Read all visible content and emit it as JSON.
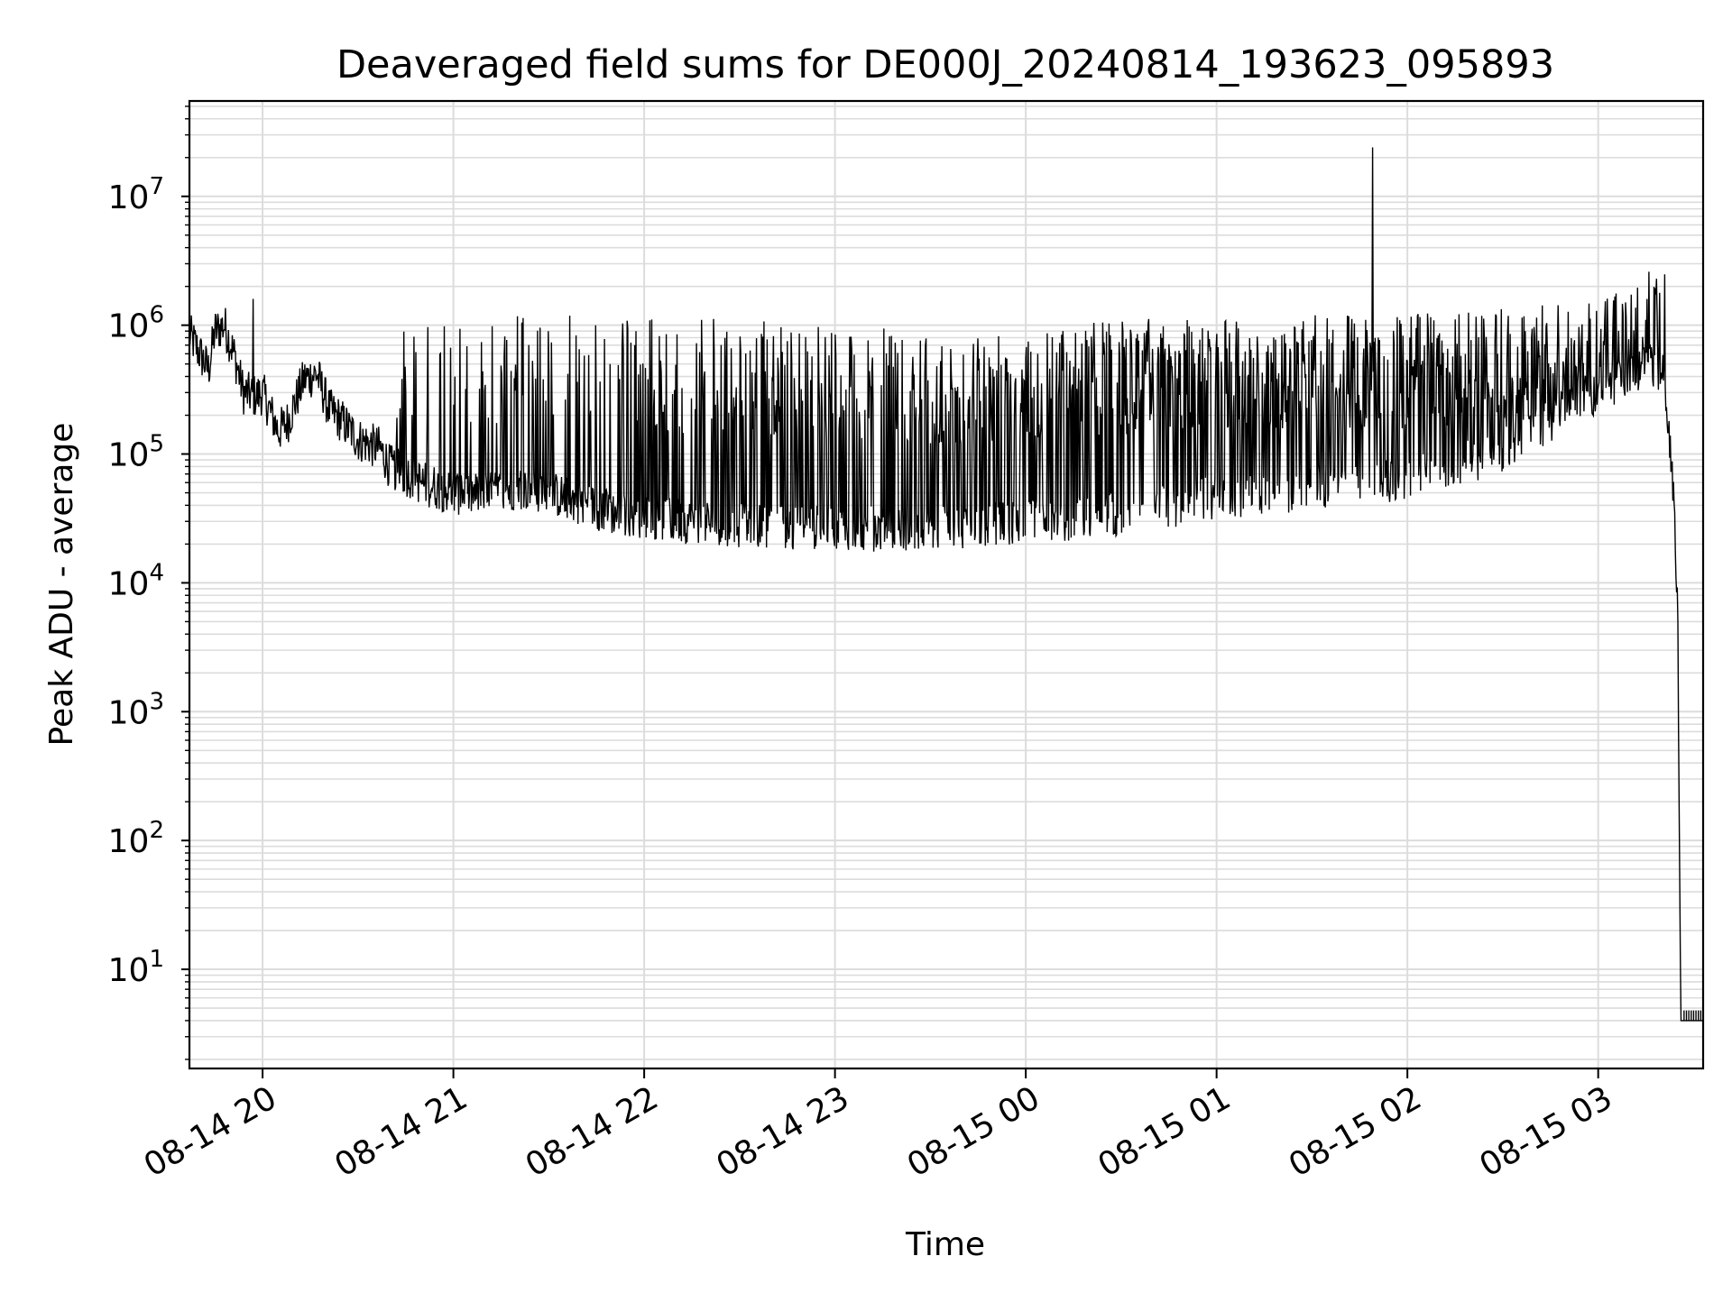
{
  "chart_data": {
    "type": "line",
    "title": "Deaveraged field sums for DE000J_20240814_193623_095893",
    "xlabel": "Time",
    "ylabel": "Peak ADU - average",
    "yscale": "log",
    "grid": true,
    "x_tick_labels": [
      "08-14 20",
      "08-14 21",
      "08-14 22",
      "08-14 23",
      "08-15 00",
      "08-15 01",
      "08-15 02",
      "08-15 03"
    ],
    "x_ticks": [
      "2024-08-14 20:00",
      "2024-08-14 21:00",
      "2024-08-14 22:00",
      "2024-08-14 23:00",
      "2024-08-15 00:00",
      "2024-08-15 01:00",
      "2024-08-15 02:00",
      "2024-08-15 03:00"
    ],
    "xlim": [
      "2024-08-14 19:37",
      "2024-08-15 03:33"
    ],
    "y_ticks": [
      {
        "value": 10,
        "base": "10",
        "exp": "1"
      },
      {
        "value": 100,
        "base": "10",
        "exp": "2"
      },
      {
        "value": 1000,
        "base": "10",
        "exp": "3"
      },
      {
        "value": 10000,
        "base": "10",
        "exp": "4"
      },
      {
        "value": 100000,
        "base": "10",
        "exp": "5"
      },
      {
        "value": 1000000,
        "base": "10",
        "exp": "6"
      },
      {
        "value": 10000000,
        "base": "10",
        "exp": "7"
      }
    ],
    "ylim": [
      1.7,
      55000000
    ],
    "series": [
      {
        "color": "#000000",
        "baseline_points": [
          [
            "2024-08-14 19:37",
            850000
          ],
          [
            "2024-08-14 19:40",
            620000
          ],
          [
            "2024-08-14 19:43",
            450000
          ],
          [
            "2024-08-14 19:45",
            900000
          ],
          [
            "2024-08-14 19:48",
            1000000
          ],
          [
            "2024-08-14 19:51",
            600000
          ],
          [
            "2024-08-14 19:54",
            300000
          ],
          [
            "2024-08-14 19:58",
            280000
          ],
          [
            "2024-08-14 20:00",
            300000
          ],
          [
            "2024-08-14 20:05",
            150000
          ],
          [
            "2024-08-14 20:08",
            180000
          ],
          [
            "2024-08-14 20:13",
            380000
          ],
          [
            "2024-08-14 20:17",
            420000
          ],
          [
            "2024-08-14 20:21",
            220000
          ],
          [
            "2024-08-14 20:25",
            180000
          ],
          [
            "2024-08-14 20:30",
            130000
          ],
          [
            "2024-08-14 20:37",
            110000
          ],
          [
            "2024-08-14 20:40",
            80000
          ],
          [
            "2024-08-14 20:45",
            70000
          ],
          [
            "2024-08-14 20:50",
            60000
          ],
          [
            "2024-08-14 21:00",
            50000
          ],
          [
            "2024-08-14 21:10",
            48000
          ],
          [
            "2024-08-14 21:20",
            55000
          ],
          [
            "2024-08-14 21:30",
            50000
          ],
          [
            "2024-08-14 21:40",
            42000
          ],
          [
            "2024-08-14 21:50",
            35000
          ],
          [
            "2024-08-14 22:00",
            33000
          ],
          [
            "2024-08-14 22:10",
            30000
          ],
          [
            "2024-08-14 22:20",
            30000
          ],
          [
            "2024-08-14 22:30",
            28000
          ],
          [
            "2024-08-14 22:45",
            27000
          ],
          [
            "2024-08-14 23:00",
            27000
          ],
          [
            "2024-08-14 23:15",
            26000
          ],
          [
            "2024-08-14 23:30",
            27000
          ],
          [
            "2024-08-14 23:45",
            28000
          ],
          [
            "2024-08-15 00:00",
            30000
          ],
          [
            "2024-08-15 00:15",
            32000
          ],
          [
            "2024-08-15 00:30",
            35000
          ],
          [
            "2024-08-15 00:45",
            40000
          ],
          [
            "2024-08-15 01:00",
            45000
          ],
          [
            "2024-08-15 01:15",
            50000
          ],
          [
            "2024-08-15 01:30",
            55000
          ],
          [
            "2024-08-15 01:45",
            60000
          ],
          [
            "2024-08-15 02:00",
            65000
          ],
          [
            "2024-08-15 02:15",
            80000
          ],
          [
            "2024-08-15 02:30",
            110000
          ],
          [
            "2024-08-15 02:45",
            180000
          ],
          [
            "2024-08-15 03:00",
            300000
          ],
          [
            "2024-08-15 03:10",
            450000
          ],
          [
            "2024-08-15 03:20",
            500000
          ],
          [
            "2024-08-15 03:22",
            200000
          ],
          [
            "2024-08-15 03:24",
            30000
          ],
          [
            "2024-08-15 03:25",
            5000
          ],
          [
            "2024-08-15 03:26",
            4
          ],
          [
            "2024-08-15 03:33",
            4
          ]
        ],
        "spike_envelope": [
          [
            "2024-08-14 20:40",
            1300000
          ],
          [
            "2024-08-14 21:00",
            1300000
          ],
          [
            "2024-08-14 21:30",
            1300000
          ],
          [
            "2024-08-14 22:00",
            1200000
          ],
          [
            "2024-08-14 22:30",
            1100000
          ],
          [
            "2024-08-14 23:00",
            1000000
          ],
          [
            "2024-08-14 23:30",
            900000
          ],
          [
            "2024-08-15 00:00",
            1000000
          ],
          [
            "2024-08-15 00:30",
            1100000
          ],
          [
            "2024-08-15 01:00",
            1200000
          ],
          [
            "2024-08-15 01:30",
            1200000
          ],
          [
            "2024-08-15 02:00",
            1200000
          ],
          [
            "2024-08-15 02:30",
            1400000
          ],
          [
            "2024-08-15 03:00",
            1600000
          ],
          [
            "2024-08-15 03:20",
            2500000
          ]
        ],
        "notable_points": [
          [
            "2024-08-14 19:57",
            1600000
          ],
          [
            "2024-08-15 01:49",
            24000000
          ],
          [
            "2024-08-15 03:16",
            2600000
          ],
          [
            "2024-08-15 03:25",
            5000
          ]
        ]
      }
    ]
  }
}
